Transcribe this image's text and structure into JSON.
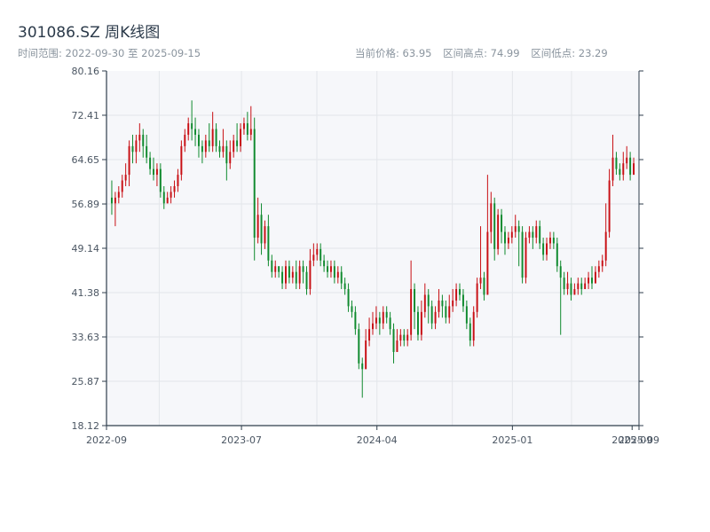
{
  "header": {
    "title": "301086.SZ 周K线图",
    "subtitle": "时间范围: 2022-09-30 至 2025-09-15",
    "current_price": "当前价格: 63.95",
    "high": "区间高点: 74.99",
    "low": "区间低点: 23.29"
  },
  "colors": {
    "up": "#c80f14",
    "down": "#0f8a2e",
    "plot_bg": "#f6f7fa",
    "grid": "#e3e6ea",
    "axis": "#2f3e4c"
  },
  "chart_data": {
    "type": "candlestick",
    "title": "301086.SZ 周K线图",
    "ylim": [
      18.12,
      80.16
    ],
    "y_ticks": [
      "18.12",
      "25.87",
      "33.63",
      "41.38",
      "49.14",
      "56.89",
      "64.65",
      "72.41",
      "80.16"
    ],
    "x_range": [
      "2022-09-30",
      "2025-09-15"
    ],
    "x_ticks": [
      {
        "date": "2022-09-30",
        "label": "2022-09"
      },
      {
        "date": "2023-07-01",
        "label": "2023-07"
      },
      {
        "date": "2024-04-01",
        "label": "2024-04"
      },
      {
        "date": "2025-01-01",
        "label": "2025-01"
      },
      {
        "date": "2025-09-01",
        "label": "2025-09"
      },
      {
        "date": "2025-09-15",
        "label": "2025-09"
      }
    ],
    "grid": true,
    "candles": [
      [
        58,
        57,
        61,
        55
      ],
      [
        57,
        58,
        59,
        53
      ],
      [
        58,
        59,
        60,
        57
      ],
      [
        59,
        61,
        62,
        58
      ],
      [
        61,
        62,
        64,
        60
      ],
      [
        62,
        67,
        68,
        60
      ],
      [
        67,
        66,
        69,
        64
      ],
      [
        66,
        68,
        69,
        64
      ],
      [
        68,
        69,
        71,
        66
      ],
      [
        69,
        67,
        70,
        65
      ],
      [
        67,
        65,
        69,
        64
      ],
      [
        65,
        63,
        66,
        62
      ],
      [
        63,
        62,
        65,
        61
      ],
      [
        62,
        63,
        64,
        60
      ],
      [
        63,
        59,
        64,
        58
      ],
      [
        59,
        57,
        60,
        56
      ],
      [
        57,
        58,
        59,
        57
      ],
      [
        58,
        59,
        60,
        57
      ],
      [
        59,
        60,
        61,
        58
      ],
      [
        60,
        62,
        63,
        59
      ],
      [
        62,
        67,
        68,
        61
      ],
      [
        67,
        69,
        70,
        66
      ],
      [
        69,
        71,
        72,
        68
      ],
      [
        71,
        70,
        75,
        68
      ],
      [
        70,
        69,
        72,
        67
      ],
      [
        69,
        67,
        70,
        65
      ],
      [
        67,
        66,
        68,
        64
      ],
      [
        66,
        68,
        69,
        65
      ],
      [
        68,
        67,
        71,
        66
      ],
      [
        67,
        70,
        73,
        66
      ],
      [
        70,
        67,
        71,
        66
      ],
      [
        67,
        66,
        68,
        65
      ],
      [
        66,
        67,
        70,
        65
      ],
      [
        67,
        64,
        68,
        61
      ],
      [
        64,
        66,
        68,
        63
      ],
      [
        66,
        68,
        69,
        65
      ],
      [
        68,
        67,
        71,
        66
      ],
      [
        67,
        70,
        71,
        66
      ],
      [
        70,
        71,
        72,
        69
      ],
      [
        71,
        69,
        73,
        68
      ],
      [
        69,
        70,
        74,
        68
      ],
      [
        70,
        51,
        72,
        47
      ],
      [
        51,
        55,
        58,
        50
      ],
      [
        55,
        50,
        57,
        48
      ],
      [
        50,
        53,
        54,
        49
      ],
      [
        53,
        47,
        55,
        46
      ],
      [
        47,
        45,
        48,
        44
      ],
      [
        45,
        46,
        47,
        44
      ],
      [
        46,
        45,
        46,
        44
      ],
      [
        45,
        43,
        46,
        42
      ],
      [
        43,
        46,
        47,
        42
      ],
      [
        46,
        44,
        47,
        43
      ],
      [
        44,
        45,
        46,
        43
      ],
      [
        45,
        43,
        47,
        42
      ],
      [
        43,
        46,
        47,
        42
      ],
      [
        46,
        45,
        47,
        43
      ],
      [
        45,
        42,
        46,
        41
      ],
      [
        42,
        47,
        49,
        41
      ],
      [
        47,
        48,
        50,
        46
      ],
      [
        48,
        49,
        50,
        47
      ],
      [
        49,
        47,
        50,
        46
      ],
      [
        47,
        46,
        48,
        45
      ],
      [
        46,
        45,
        47,
        44
      ],
      [
        45,
        46,
        47,
        44
      ],
      [
        46,
        44,
        47,
        43
      ],
      [
        44,
        45,
        46,
        43
      ],
      [
        45,
        43,
        46,
        42
      ],
      [
        43,
        42,
        44,
        41
      ],
      [
        42,
        39,
        43,
        38
      ],
      [
        39,
        38,
        40,
        37
      ],
      [
        38,
        35,
        39,
        34
      ],
      [
        35,
        29,
        36,
        28
      ],
      [
        29,
        28,
        30,
        23
      ],
      [
        28,
        33,
        35,
        28
      ],
      [
        33,
        35,
        37,
        32
      ],
      [
        35,
        36,
        38,
        34
      ],
      [
        36,
        37,
        39,
        35
      ],
      [
        37,
        36,
        38,
        34
      ],
      [
        36,
        38,
        39,
        35
      ],
      [
        38,
        37,
        39,
        36
      ],
      [
        37,
        35,
        38,
        34
      ],
      [
        35,
        31,
        36,
        29
      ],
      [
        31,
        33,
        35,
        31
      ],
      [
        33,
        34,
        35,
        32
      ],
      [
        34,
        33,
        35,
        32
      ],
      [
        33,
        34,
        35,
        32
      ],
      [
        34,
        42,
        47,
        33
      ],
      [
        42,
        38,
        43,
        35
      ],
      [
        38,
        34,
        39,
        33
      ],
      [
        34,
        38,
        40,
        33
      ],
      [
        38,
        41,
        43,
        37
      ],
      [
        41,
        39,
        42,
        36
      ],
      [
        39,
        36,
        40,
        35
      ],
      [
        36,
        38,
        39,
        35
      ],
      [
        38,
        40,
        42,
        37
      ],
      [
        40,
        39,
        41,
        37
      ],
      [
        39,
        37,
        40,
        36
      ],
      [
        37,
        39,
        41,
        36
      ],
      [
        39,
        40,
        42,
        38
      ],
      [
        40,
        42,
        43,
        39
      ],
      [
        42,
        41,
        43,
        40
      ],
      [
        41,
        39,
        42,
        38
      ],
      [
        39,
        36,
        40,
        35
      ],
      [
        36,
        33,
        37,
        32
      ],
      [
        33,
        38,
        39,
        32
      ],
      [
        38,
        43,
        44,
        37
      ],
      [
        43,
        44,
        53,
        42
      ],
      [
        44,
        41,
        45,
        40
      ],
      [
        41,
        52,
        62,
        41
      ],
      [
        52,
        57,
        59,
        50
      ],
      [
        57,
        49,
        58,
        47
      ],
      [
        49,
        55,
        56,
        48
      ],
      [
        55,
        52,
        56,
        50
      ],
      [
        52,
        50,
        53,
        48
      ],
      [
        50,
        51,
        52,
        49
      ],
      [
        51,
        52,
        53,
        50
      ],
      [
        52,
        53,
        55,
        51
      ],
      [
        53,
        52,
        54,
        46
      ],
      [
        52,
        44,
        53,
        43
      ],
      [
        44,
        51,
        52,
        43
      ],
      [
        51,
        52,
        53,
        50
      ],
      [
        52,
        51,
        53,
        49
      ],
      [
        51,
        53,
        54,
        50
      ],
      [
        53,
        50,
        54,
        49
      ],
      [
        50,
        48,
        51,
        47
      ],
      [
        48,
        50,
        51,
        47
      ],
      [
        50,
        51,
        52,
        49
      ],
      [
        51,
        50,
        52,
        49
      ],
      [
        50,
        46,
        51,
        45
      ],
      [
        46,
        44,
        47,
        34
      ],
      [
        44,
        42,
        45,
        41
      ],
      [
        42,
        43,
        45,
        41
      ],
      [
        43,
        41,
        44,
        40
      ],
      [
        41,
        42,
        43,
        41
      ],
      [
        42,
        43,
        44,
        41
      ],
      [
        43,
        42,
        44,
        41
      ],
      [
        42,
        43,
        44,
        42
      ],
      [
        43,
        44,
        45,
        42
      ],
      [
        44,
        43,
        46,
        42
      ],
      [
        43,
        45,
        46,
        43
      ],
      [
        45,
        46,
        47,
        44
      ],
      [
        46,
        47,
        48,
        45
      ],
      [
        47,
        52,
        57,
        46
      ],
      [
        52,
        61,
        63,
        51
      ],
      [
        61,
        65,
        69,
        60
      ],
      [
        65,
        63,
        66,
        62
      ],
      [
        63,
        62,
        64,
        61
      ],
      [
        62,
        64,
        66,
        61
      ],
      [
        64,
        65,
        67,
        63
      ],
      [
        65,
        62,
        66,
        61
      ],
      [
        62,
        64,
        65,
        62
      ]
    ]
  }
}
